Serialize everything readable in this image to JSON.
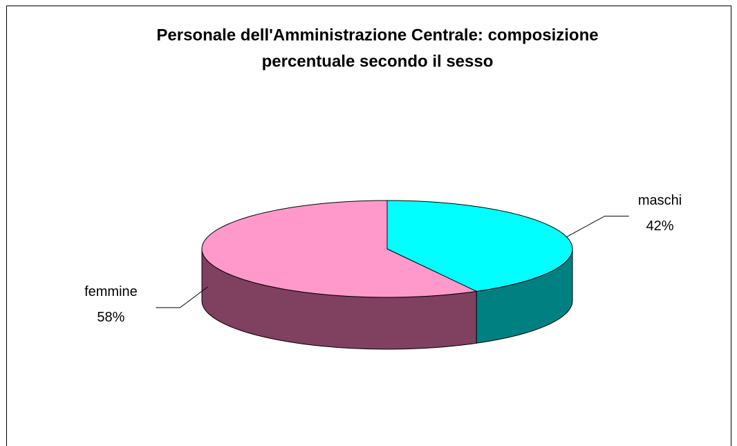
{
  "chart_data": {
    "type": "pie3d",
    "title": "Personale dell'Amministrazione Centrale: composizione",
    "subtitle": "percentuale secondo il sesso",
    "categories": [
      "maschi",
      "femmine"
    ],
    "values": [
      42,
      58
    ],
    "value_labels": [
      "42%",
      "58%"
    ],
    "colors": [
      "#00ffff",
      "#ff99cc"
    ],
    "side_colors": [
      "#008080",
      "#804060"
    ]
  }
}
